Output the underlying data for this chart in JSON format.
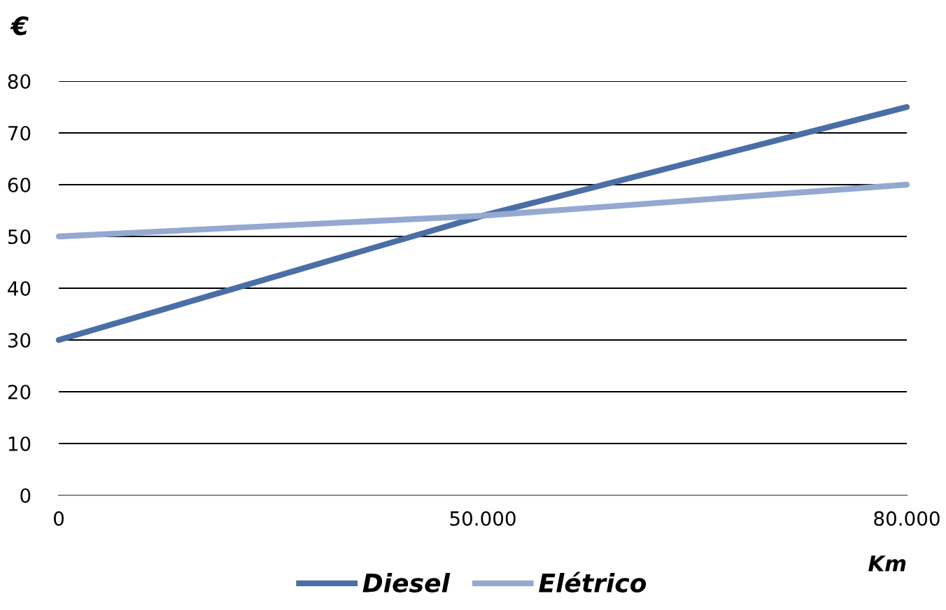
{
  "chart_data": {
    "type": "line",
    "xlabel": "Km",
    "ylabel": "€",
    "categories": [
      "0",
      "50.000",
      "80.000"
    ],
    "series": [
      {
        "name": "Diesel",
        "color": "#4a6fa5",
        "values": [
          30,
          54,
          75
        ]
      },
      {
        "name": "Elétrico",
        "color": "#93a9d1",
        "values": [
          50,
          54,
          60
        ]
      }
    ],
    "ylim": [
      0,
      80
    ],
    "yticks": [
      0,
      10,
      20,
      30,
      40,
      50,
      60,
      70,
      80
    ],
    "grid": "y",
    "legend": "bottom",
    "marker": "none",
    "line_style": "solid"
  }
}
